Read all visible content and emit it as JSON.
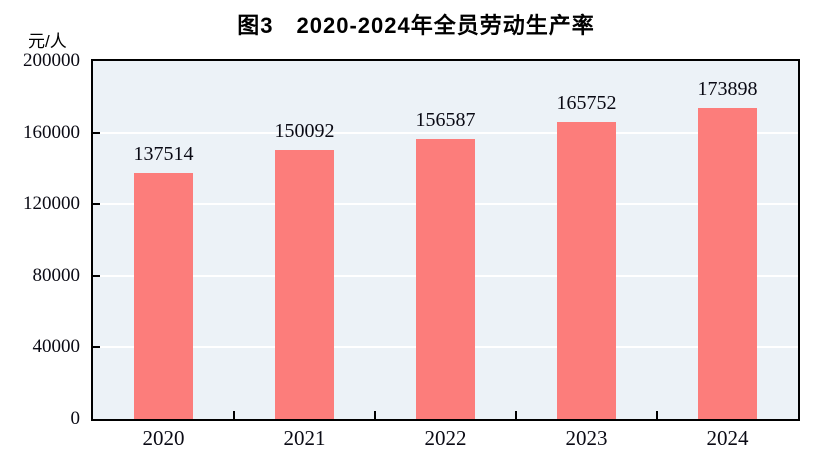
{
  "title": "图3　2020-2024年全员劳动生产率",
  "chart_data": {
    "type": "bar",
    "title": "图3　2020-2024年全员劳动生产率",
    "unit_label": "元/人",
    "xlabel": "",
    "ylabel": "元/人",
    "categories": [
      "2020",
      "2021",
      "2022",
      "2023",
      "2024"
    ],
    "values": [
      137514,
      150092,
      156587,
      165752,
      173898
    ],
    "data_labels": [
      "137514",
      "150092",
      "156587",
      "165752",
      "173898"
    ],
    "ylim": [
      0,
      200000
    ],
    "yticks": [
      0,
      40000,
      80000,
      120000,
      160000,
      200000
    ],
    "ytick_labels": [
      "0",
      "40000",
      "80000",
      "120000",
      "160000",
      "200000"
    ],
    "grid": true,
    "legend": "none",
    "colors": {
      "bar_fill": "#FC7D7B",
      "plot_background": "#ECF2F7",
      "gridline": "#FFFFFF",
      "border": "#000000",
      "text": "#0A0A14",
      "page_background": "#FFFFFF"
    }
  }
}
